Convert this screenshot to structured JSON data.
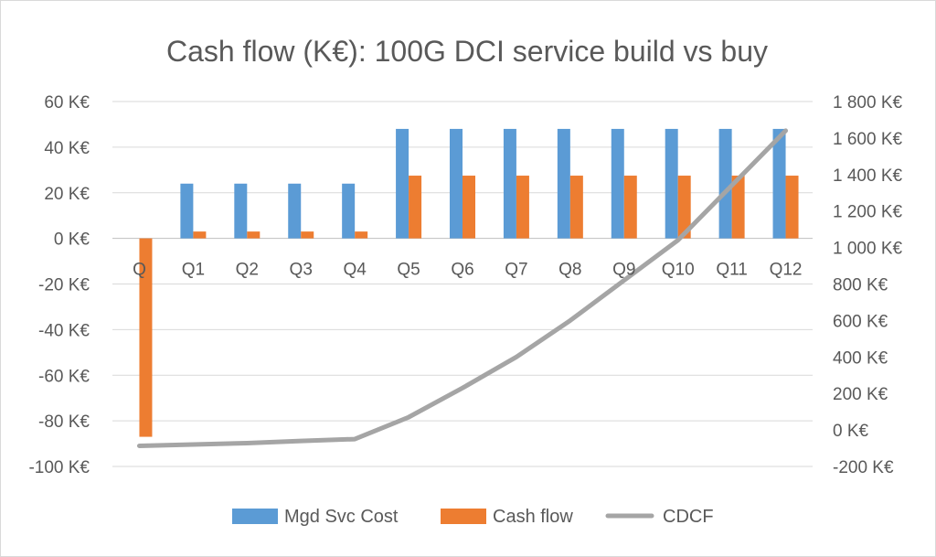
{
  "chart_data": {
    "type": "bar",
    "title": "Cash flow (K€): 100G DCI service build vs buy",
    "categories": [
      "Q",
      "Q1",
      "Q2",
      "Q3",
      "Q4",
      "Q5",
      "Q6",
      "Q7",
      "Q8",
      "Q9",
      "Q10",
      "Q11",
      "Q12"
    ],
    "ylim": [
      -100,
      60
    ],
    "y_ticks": [
      60,
      40,
      20,
      0,
      -20,
      -40,
      -60,
      -80,
      -100
    ],
    "y_tick_labels": [
      "60 K€",
      "40 K€",
      "20 K€",
      "0 K€",
      "-20 K€",
      "-40 K€",
      "-60 K€",
      "-80 K€",
      "-100 K€"
    ],
    "y2lim": [
      -200,
      1800
    ],
    "y2_ticks": [
      1800,
      1600,
      1400,
      1200,
      1000,
      800,
      600,
      400,
      200,
      0,
      -200
    ],
    "y2_tick_labels": [
      "1 800 K€",
      "1 600 K€",
      "1 400 K€",
      "1 200 K€",
      "1 000 K€",
      "800 K€",
      "600 K€",
      "400 K€",
      "200 K€",
      "0 K€",
      "-200 K€"
    ],
    "grid": true,
    "legend_position": "bottom",
    "series": [
      {
        "name": "Mgd Svc Cost",
        "type": "bar",
        "axis": "left",
        "color": "#5B9BD5",
        "values": [
          0,
          24,
          24,
          24,
          24,
          48,
          48,
          48,
          48,
          48,
          48,
          48,
          48
        ]
      },
      {
        "name": "Cash flow",
        "type": "bar",
        "axis": "left",
        "color": "#ED7D31",
        "values": [
          -87,
          3,
          3,
          3,
          3,
          27.5,
          27.5,
          27.5,
          27.5,
          27.5,
          27.5,
          27.5,
          27.5
        ]
      },
      {
        "name": "CDCF",
        "type": "line",
        "axis": "right",
        "color": "#A5A5A5",
        "values": [
          -87,
          -80,
          -72,
          -60,
          -50,
          70,
          230,
          400,
          600,
          820,
          1040,
          1340,
          1640
        ]
      }
    ]
  }
}
